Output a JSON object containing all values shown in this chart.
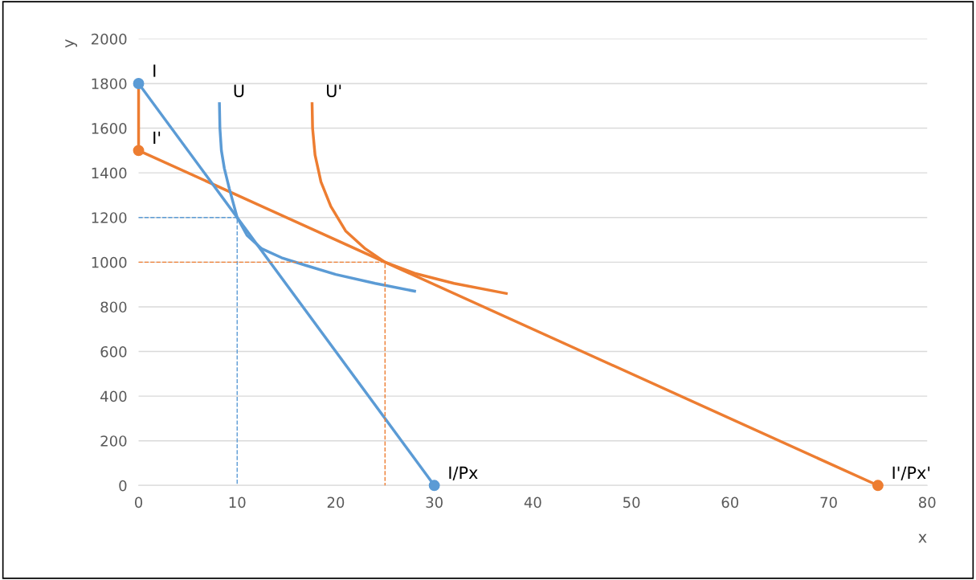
{
  "chart_data": {
    "type": "line",
    "xlabel": "x",
    "ylabel": "y",
    "xlim": [
      0,
      80
    ],
    "xticks": [
      0,
      10,
      20,
      30,
      40,
      50,
      60,
      70,
      80
    ],
    "ylim": [
      0,
      2000
    ],
    "yticks": [
      0,
      200,
      400,
      600,
      800,
      1000,
      1200,
      1400,
      1600,
      1800,
      2000
    ],
    "grid": "y",
    "legend": false,
    "series": [
      {
        "color": "#ed7d31",
        "x": [
          0,
          0
        ],
        "values": [
          1800,
          1500
        ],
        "line_style": "solid"
      },
      {
        "color": "#ed7d31",
        "x": [
          0,
          75
        ],
        "values": [
          1500,
          0
        ],
        "marker": "circle",
        "line_style": "solid"
      },
      {
        "color": "#5b9bd5",
        "x": [
          0,
          30
        ],
        "values": [
          1800,
          0
        ],
        "marker": "circle",
        "line_style": "solid"
      },
      {
        "color": "#5b9bd5",
        "x": [
          8.2,
          8.25,
          8.4,
          8.7,
          9.2,
          10,
          11,
          12.5,
          14.5,
          17,
          20,
          24,
          28
        ],
        "values": [
          1710,
          1600,
          1500,
          1420,
          1330,
          1200,
          1120,
          1060,
          1020,
          985,
          945,
          905,
          870
        ],
        "line_style": "solid"
      },
      {
        "color": "#ed7d31",
        "x": [
          17.6,
          17.65,
          17.9,
          18.5,
          19.5,
          21,
          23,
          25,
          28,
          32,
          37.3
        ],
        "values": [
          1710,
          1600,
          1480,
          1360,
          1250,
          1140,
          1060,
          1000,
          950,
          905,
          860
        ],
        "line_style": "solid"
      },
      {
        "color": "#5b9bd5",
        "x": [
          0,
          10,
          10
        ],
        "values": [
          1200,
          1200,
          0
        ],
        "line_style": "dashed"
      },
      {
        "color": "#ed7d31",
        "x": [
          0,
          25,
          25
        ],
        "values": [
          1000,
          1000,
          0
        ],
        "line_style": "dashed"
      }
    ],
    "annotations": [
      {
        "text": "I",
        "x": 0,
        "y": 1800
      },
      {
        "text": "I'",
        "x": 0,
        "y": 1500
      },
      {
        "text": "U",
        "x": 8.2,
        "y": 1710
      },
      {
        "text": "U'",
        "x": 17.6,
        "y": 1710
      },
      {
        "text": "I/Px",
        "x": 30,
        "y": 0
      },
      {
        "text": "I'/Px'",
        "x": 75,
        "y": 0
      }
    ]
  }
}
